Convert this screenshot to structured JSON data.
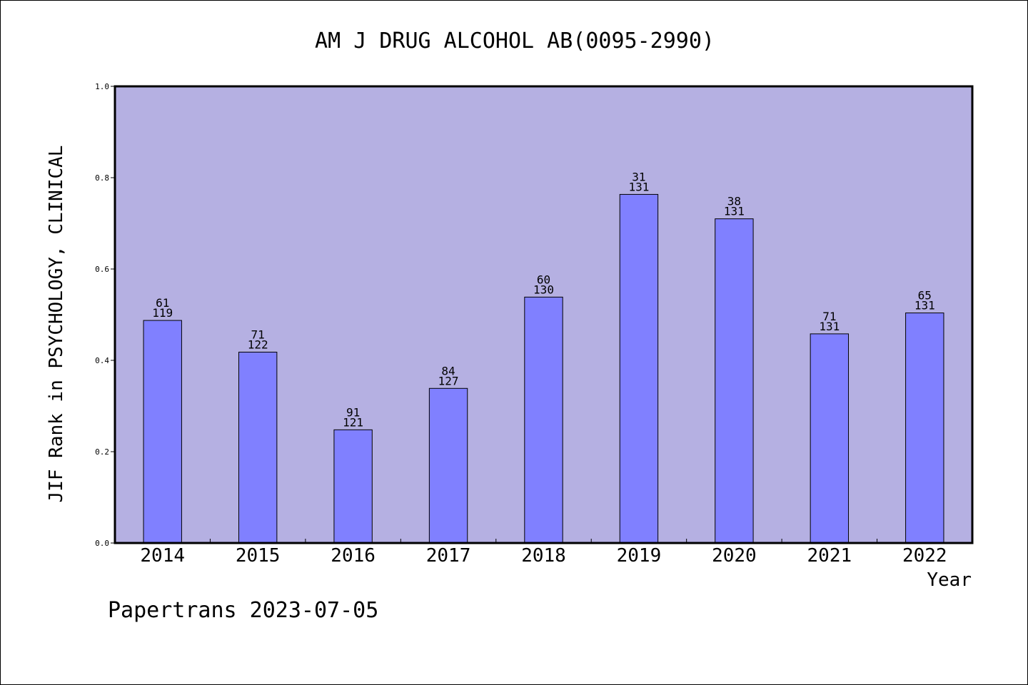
{
  "chart_data": {
    "type": "bar",
    "title": "AM J DRUG ALCOHOL AB(0095-2990)",
    "xlabel": "Year",
    "ylabel": "JIF Rank in PSYCHOLOGY, CLINICAL",
    "ylim": [
      0.0,
      1.0
    ],
    "yticks": [
      "0.0",
      "0.2",
      "0.4",
      "0.6",
      "0.8",
      "1.0"
    ],
    "categories": [
      "2014",
      "2015",
      "2016",
      "2017",
      "2018",
      "2019",
      "2020",
      "2021",
      "2022"
    ],
    "values": [
      0.4874,
      0.418,
      0.2479,
      0.3386,
      0.5385,
      0.7634,
      0.7099,
      0.458,
      0.5038
    ],
    "ranks": [
      "61",
      "71",
      "91",
      "84",
      "60",
      "31",
      "38",
      "71",
      "65"
    ],
    "totals": [
      "119",
      "122",
      "121",
      "127",
      "130",
      "131",
      "131",
      "131",
      "131"
    ],
    "grid": false,
    "colors": {
      "plot_background": "#b5b0e2",
      "bar_fill": "#8080ff",
      "bar_stroke": "#000000"
    }
  },
  "footer": {
    "watermark": "Papertrans 2023-07-05"
  }
}
